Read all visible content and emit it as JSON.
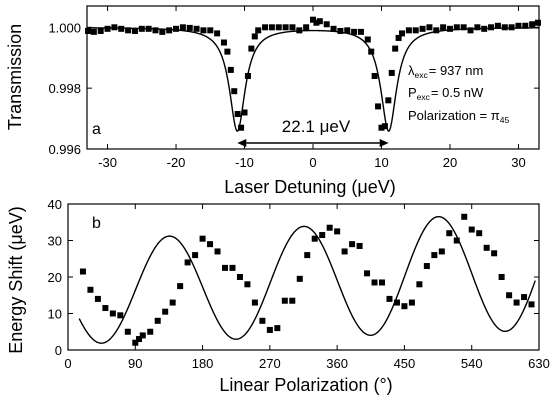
{
  "chart_data": [
    {
      "id": "a",
      "type": "scatter",
      "panel_label": "a",
      "xlabel": "Laser Detuning (μeV)",
      "ylabel": "Transmission",
      "xlim": [
        -33,
        33
      ],
      "ylim": [
        0.996,
        1.0007
      ],
      "xticks": [
        -30,
        -20,
        -10,
        0,
        10,
        20,
        30
      ],
      "yticks": [
        0.996,
        0.998,
        1.0
      ],
      "ytick_labels": [
        "0.996",
        "0.998",
        "1.000"
      ],
      "series": [
        {
          "kind": "points",
          "x": [
            -33,
            -32,
            -31,
            -30,
            -29,
            -28,
            -27,
            -26,
            -25,
            -24,
            -23,
            -22,
            -21,
            -20,
            -19,
            -18,
            -17,
            -16,
            -15,
            -14,
            -13,
            -12.5,
            -12,
            -11.5,
            -11,
            -10.5,
            -10,
            -9.5,
            -9,
            -8.5,
            -8,
            -7,
            -6,
            -5,
            -4,
            -3,
            -2,
            -1,
            0,
            0.5,
            1,
            2,
            3,
            4,
            5,
            6,
            7,
            8,
            8.5,
            9,
            9.5,
            10,
            10.5,
            11,
            11.5,
            12,
            12.5,
            13,
            14,
            15,
            16,
            17,
            18,
            19,
            20,
            21,
            22,
            23,
            24,
            25,
            26,
            27,
            28,
            29,
            30,
            31,
            32,
            33
          ],
          "y": [
            0.99988,
            0.99985,
            0.99988,
            0.99995,
            1.0,
            0.99995,
            0.9999,
            0.99988,
            0.99995,
            0.99995,
            0.9999,
            0.99985,
            0.9999,
            0.99995,
            1.0,
            0.99998,
            0.99995,
            0.9999,
            0.9999,
            0.9998,
            0.9995,
            0.9992,
            0.9986,
            0.9979,
            0.99715,
            0.9967,
            0.9972,
            0.9984,
            0.9993,
            0.9997,
            0.9999,
            1.0,
            1.0,
            1.0,
            1.0,
            1.0,
            0.9999,
            1.0,
            1.00025,
            1.00015,
            1.0002,
            1.0001,
            0.99995,
            0.99988,
            0.9999,
            0.99985,
            0.99985,
            0.9996,
            0.9992,
            0.9984,
            0.9974,
            0.9967,
            0.99675,
            0.9976,
            0.9985,
            0.9993,
            0.99965,
            0.9998,
            0.9999,
            0.9999,
            0.99995,
            1.0,
            0.9999,
            1.0,
            0.99995,
            1.0,
            1.0,
            0.9999,
            1.0,
            0.99995,
            1.0,
            1.00005,
            1.0,
            1.0,
            1.00005,
            1.00005,
            1.0001,
            1.00015
          ]
        },
        {
          "kind": "fit",
          "model": "double Lorentzian dip",
          "centers": [
            -11.05,
            11.05
          ],
          "fwhm": 2.8,
          "depth": 0.0034,
          "baseline": 1.0
        }
      ],
      "annotations": {
        "wavelength_sym": "λ",
        "wavelength_sub": "exc",
        "wavelength_val": "= 937 nm",
        "power_sym": "P",
        "power_sub": "exc",
        "power_val": "= 0.5 nW",
        "polarization_text": "Polarization = π",
        "polarization_sub": "45",
        "splitting_label": "22.1 μeV",
        "splitting_from": -11.05,
        "splitting_to": 11.05
      }
    },
    {
      "id": "b",
      "type": "scatter",
      "panel_label": "b",
      "xlabel": "Linear Polarization (°)",
      "ylabel": "Energy Shift (μeV)",
      "xlim": [
        0,
        630
      ],
      "ylim": [
        0,
        40
      ],
      "xticks": [
        0,
        90,
        180,
        270,
        360,
        450,
        540,
        630
      ],
      "yticks": [
        0,
        10,
        20,
        30,
        40
      ],
      "series": [
        {
          "kind": "points",
          "x": [
            20,
            30,
            40,
            50,
            60,
            70,
            80,
            90,
            95,
            100,
            110,
            120,
            130,
            140,
            150,
            160,
            170,
            180,
            190,
            200,
            210,
            220,
            230,
            240,
            250,
            260,
            270,
            280,
            290,
            300,
            310,
            320,
            330,
            340,
            350,
            360,
            370,
            380,
            390,
            400,
            410,
            420,
            430,
            440,
            450,
            460,
            470,
            480,
            490,
            500,
            510,
            520,
            530,
            540,
            550,
            560,
            570,
            580,
            590,
            600,
            610,
            620
          ],
          "y": [
            21.5,
            16.5,
            14,
            11.5,
            10,
            9.5,
            5,
            2,
            3,
            4,
            5,
            8,
            10.5,
            13,
            17.5,
            24,
            26,
            30.5,
            29,
            27,
            22.5,
            22.5,
            20,
            18,
            13,
            8,
            5.5,
            6,
            13.5,
            13.5,
            19.5,
            26,
            30.5,
            31.5,
            33.5,
            32.5,
            27,
            29,
            28.5,
            21,
            18.5,
            18.5,
            14,
            13,
            12,
            13,
            18,
            23,
            26,
            27,
            32,
            30,
            36.5,
            33,
            32,
            28,
            26.5,
            20,
            15,
            13,
            14.5,
            12.5
          ]
        },
        {
          "kind": "fit",
          "model": "sinusoid with linear drift",
          "x_range": [
            15,
            625
          ],
          "params": {
            "offset0": 15.4,
            "drift_per_deg": 0.0104,
            "amp0": 13.8,
            "amp_drift_per_deg": 0.0044,
            "period_deg": 180,
            "phase_deg": 90
          }
        }
      ]
    }
  ]
}
